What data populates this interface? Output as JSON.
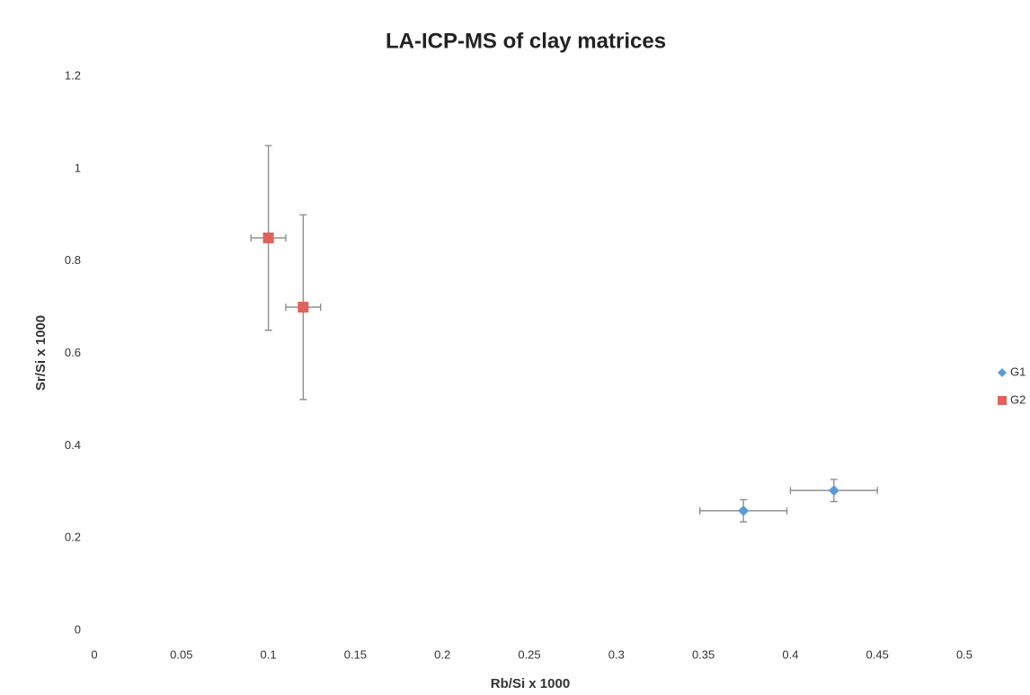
{
  "chart_data": {
    "type": "scatter",
    "title": "LA-ICP-MS of clay matrices",
    "x_label": "Rb/Si x 1000",
    "y_label": "Sr/Si x 1000",
    "series": [
      {
        "name": "G1",
        "color": "#5b9bd5",
        "marker": "diamond",
        "x": [
          0.373,
          0.425
        ],
        "y": [
          0.259,
          0.303
        ],
        "xerr": [
          0.025,
          0.025
        ],
        "yerr": [
          0.024,
          0.024
        ]
      },
      {
        "name": "G2",
        "color": "#e0625a",
        "marker": "square",
        "x": [
          0.1,
          0.12
        ],
        "y": [
          0.85,
          0.7
        ],
        "xerr": [
          0.01,
          0.01
        ],
        "yerr": [
          0.2,
          0.2
        ]
      }
    ],
    "xlim": [
      0,
      0.5
    ],
    "xticks": [
      0,
      0.05,
      0.1,
      0.15,
      0.2,
      0.25,
      0.3,
      0.35,
      0.4,
      0.45,
      0.5
    ],
    "ylim": [
      0,
      1.2
    ],
    "yticks": [
      0,
      0.2,
      0.4,
      0.6,
      0.8,
      1,
      1.2
    ],
    "grid": false,
    "legend": "right"
  }
}
